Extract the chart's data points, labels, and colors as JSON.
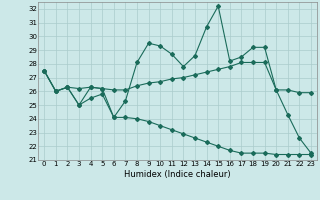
{
  "xlabel": "Humidex (Indice chaleur)",
  "xlim": [
    -0.5,
    23.5
  ],
  "ylim": [
    21,
    32.5
  ],
  "yticks": [
    21,
    22,
    23,
    24,
    25,
    26,
    27,
    28,
    29,
    30,
    31,
    32
  ],
  "xticks": [
    0,
    1,
    2,
    3,
    4,
    5,
    6,
    7,
    8,
    9,
    10,
    11,
    12,
    13,
    14,
    15,
    16,
    17,
    18,
    19,
    20,
    21,
    22,
    23
  ],
  "background_color": "#cce8e8",
  "grid_color": "#aacccc",
  "line_color": "#1a6b5a",
  "line1_y": [
    27.5,
    26.0,
    26.3,
    25.0,
    26.3,
    26.2,
    24.1,
    25.3,
    28.1,
    29.5,
    29.3,
    28.7,
    27.8,
    28.6,
    30.7,
    32.2,
    28.2,
    28.5,
    29.2,
    29.2,
    26.1,
    24.3,
    22.6,
    21.5
  ],
  "line2_y": [
    27.5,
    26.0,
    26.3,
    26.2,
    26.3,
    26.2,
    26.1,
    26.1,
    26.4,
    26.6,
    26.7,
    26.9,
    27.0,
    27.2,
    27.4,
    27.6,
    27.8,
    28.1,
    28.1,
    28.1,
    26.1,
    26.1,
    25.9,
    25.9
  ],
  "line3_y": [
    27.5,
    26.0,
    26.3,
    25.0,
    25.5,
    25.8,
    24.1,
    24.1,
    24.0,
    23.8,
    23.5,
    23.2,
    22.9,
    22.6,
    22.3,
    22.0,
    21.7,
    21.5,
    21.5,
    21.5,
    21.4,
    21.4,
    21.4,
    21.4
  ]
}
